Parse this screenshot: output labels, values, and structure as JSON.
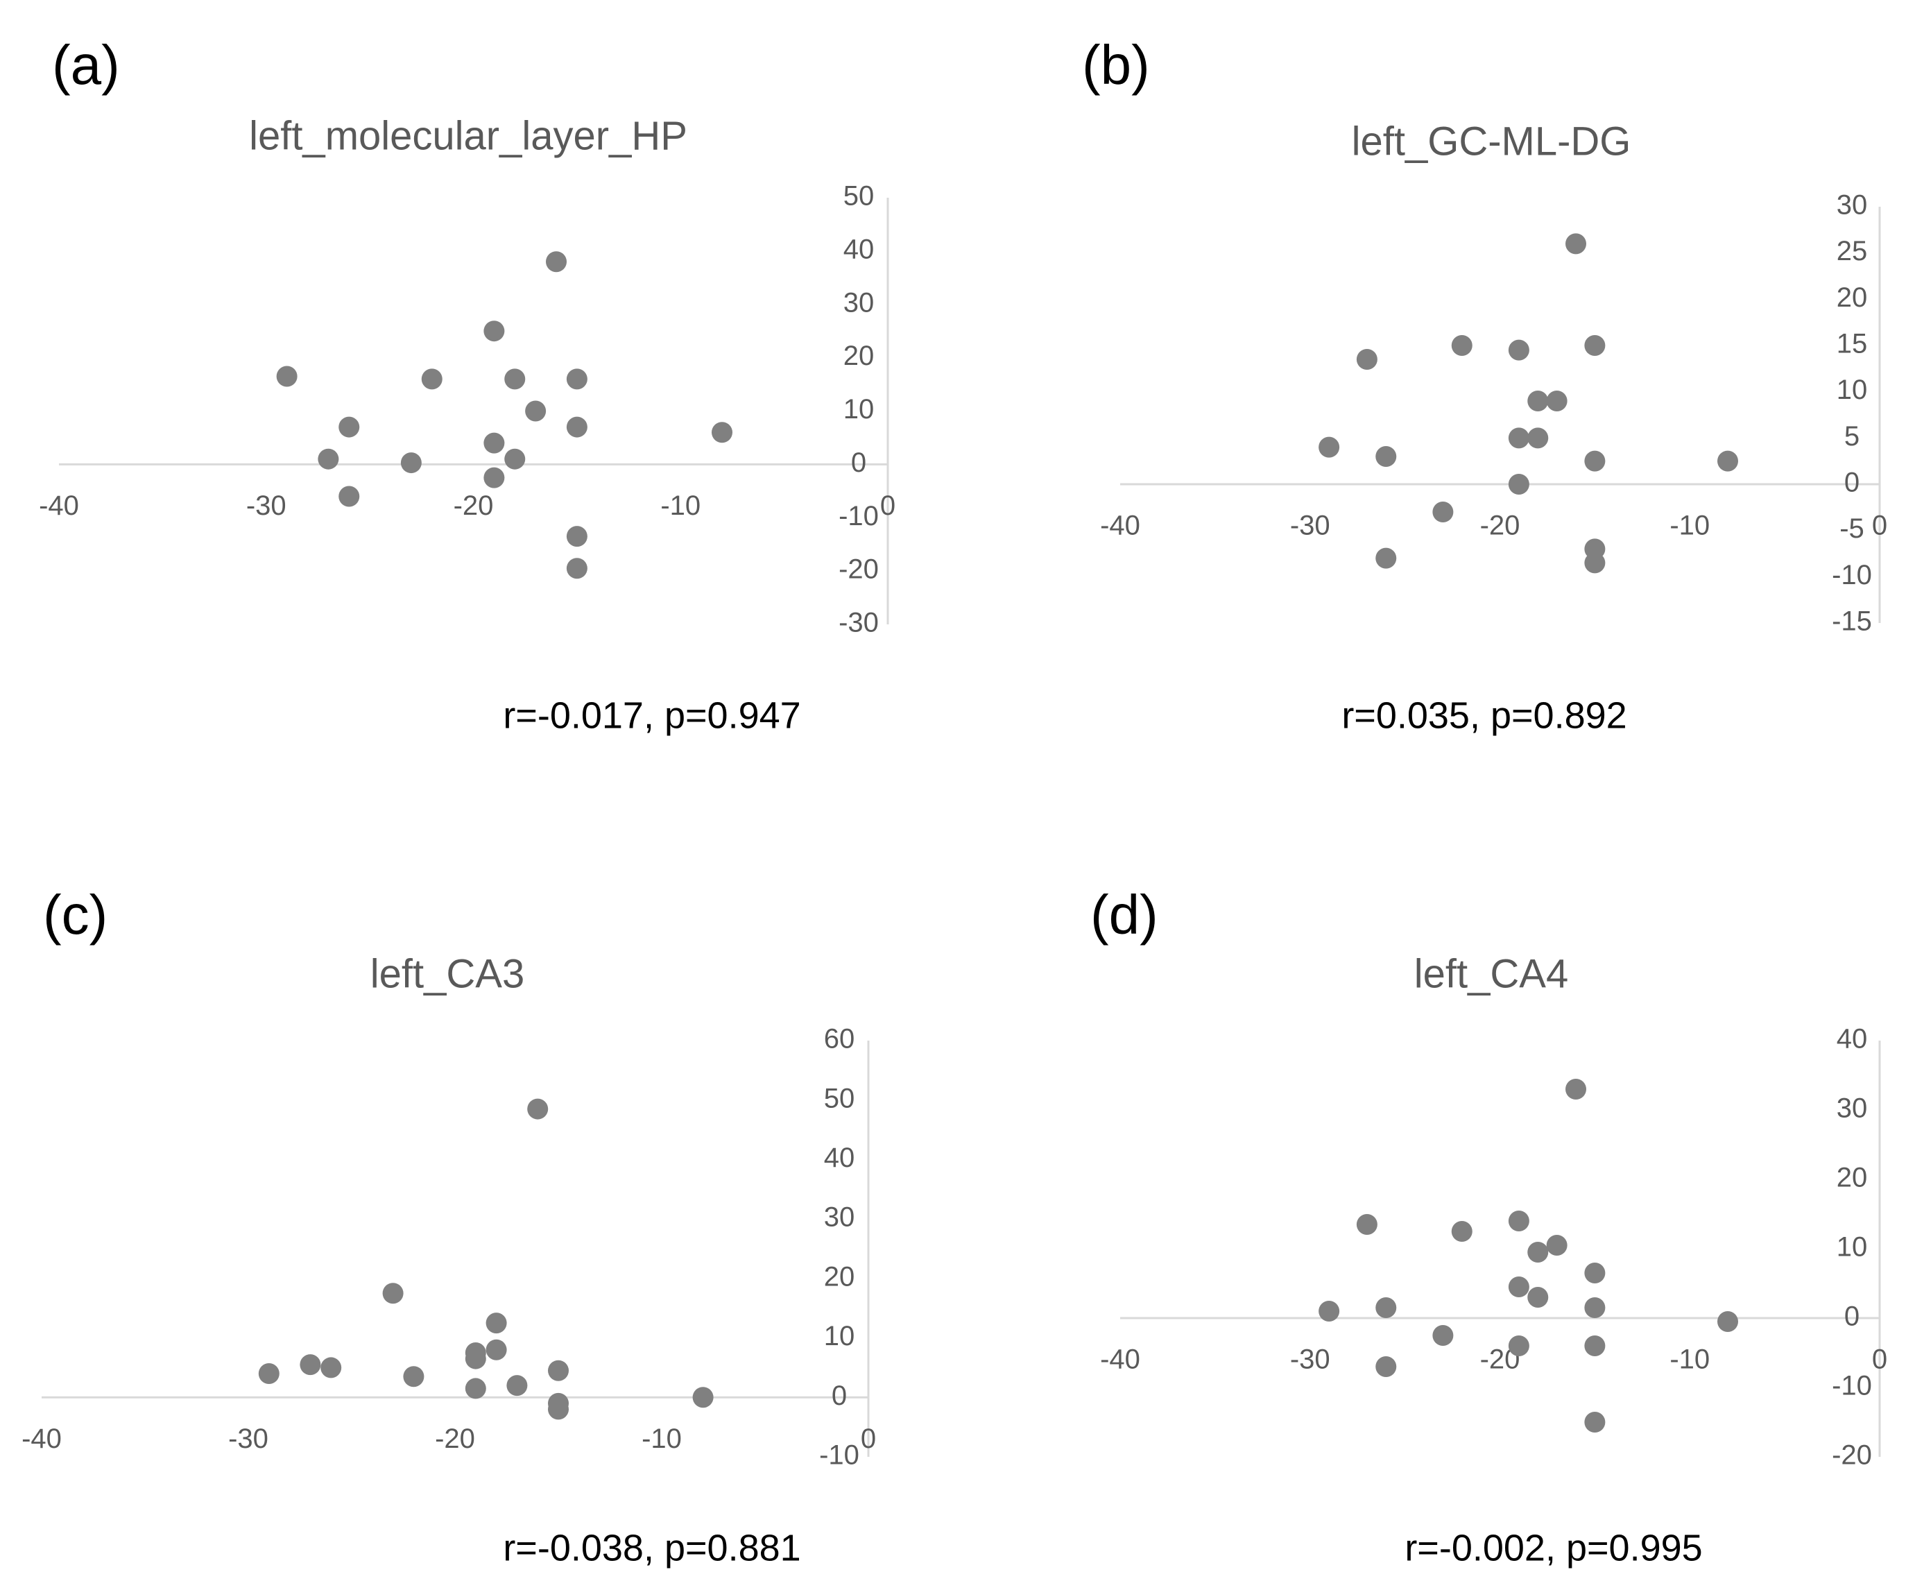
{
  "colors": {
    "axis": "#d9d9d9",
    "marker": "#808080",
    "text": "#595959",
    "label": "#000000"
  },
  "chart_data": [
    {
      "panel": "(a)",
      "type": "scatter",
      "title": "left_molecular_layer_HP",
      "annotation": "r=-0.017, p=0.947",
      "xlim": [
        -40,
        0
      ],
      "ylim": [
        -30,
        50
      ],
      "x_ticks": [
        -40,
        -30,
        -20,
        -10,
        0
      ],
      "y_ticks": [
        -30,
        -20,
        -10,
        0,
        10,
        20,
        30,
        40,
        50
      ],
      "x": [
        -29,
        -27,
        -26,
        -26,
        -23,
        -22,
        -19,
        -19,
        -19,
        -18,
        -18,
        -17,
        -16,
        -15,
        -15,
        -15,
        -15,
        -8
      ],
      "y": [
        16.5,
        1,
        7,
        -6,
        0.3,
        16,
        25,
        4,
        -2.5,
        16,
        1,
        10,
        38,
        16,
        7,
        -13.5,
        -19.5,
        6
      ]
    },
    {
      "panel": "(b)",
      "type": "scatter",
      "title": "left_GC-ML-DG",
      "annotation": "r=0.035, p=0.892",
      "xlim": [
        -40,
        0
      ],
      "ylim": [
        -15,
        30
      ],
      "x_ticks": [
        -40,
        -30,
        -20,
        -10,
        0
      ],
      "y_ticks": [
        -15,
        -10,
        -5,
        0,
        5,
        10,
        15,
        20,
        25,
        30
      ],
      "x": [
        -29,
        -27,
        -26,
        -26,
        -23,
        -22,
        -19,
        -19,
        -19,
        -18,
        -18,
        -17,
        -16,
        -15,
        -15,
        -15,
        -15,
        -8
      ],
      "y": [
        4,
        13.5,
        3,
        -8,
        -3,
        15,
        14.5,
        5,
        0,
        9,
        5,
        9,
        26,
        15,
        2.5,
        -7,
        -8.5,
        2.5
      ]
    },
    {
      "panel": "(c)",
      "type": "scatter",
      "title": "left_CA3",
      "annotation": "r=-0.038, p=0.881",
      "xlim": [
        -40,
        0
      ],
      "ylim": [
        -10,
        60
      ],
      "x_ticks": [
        -40,
        -30,
        -20,
        -10,
        0
      ],
      "y_ticks": [
        -10,
        0,
        10,
        20,
        30,
        40,
        50,
        60
      ],
      "x": [
        -29,
        -27,
        -26,
        -23,
        -22,
        -19,
        -19,
        -19,
        -18,
        -18,
        -17,
        -16,
        -15,
        -15,
        -15,
        -8
      ],
      "y": [
        4,
        5.5,
        5,
        17.5,
        3.5,
        7.5,
        6.5,
        1.5,
        12.5,
        8,
        2,
        48.5,
        4.5,
        -1,
        -2,
        0
      ]
    },
    {
      "panel": "(d)",
      "type": "scatter",
      "title": "left_CA4",
      "annotation": "r=-0.002, p=0.995",
      "xlim": [
        -40,
        0
      ],
      "ylim": [
        -20,
        40
      ],
      "x_ticks": [
        -40,
        -30,
        -20,
        -10,
        0
      ],
      "y_ticks": [
        -20,
        -10,
        0,
        10,
        20,
        30,
        40
      ],
      "x": [
        -29,
        -27,
        -26,
        -26,
        -23,
        -22,
        -19,
        -19,
        -19,
        -18,
        -18,
        -17,
        -16,
        -15,
        -15,
        -15,
        -15,
        -8
      ],
      "y": [
        1,
        13.5,
        1.5,
        -7,
        -2.5,
        12.5,
        14,
        4.5,
        -4,
        9.5,
        3,
        10.5,
        33,
        6.5,
        1.5,
        -4,
        -15,
        -0.5
      ]
    }
  ]
}
